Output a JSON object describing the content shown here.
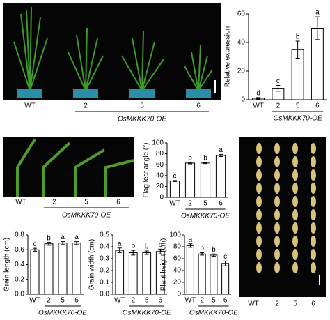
{
  "photos": [
    {
      "labels": [
        "WT",
        "2",
        "5",
        "6"
      ],
      "group_label": "OsMKKK70-OE"
    },
    {
      "labels": [
        "WT",
        "2",
        "5",
        "6"
      ],
      "group_label": "OsMKKK70-OE"
    },
    {
      "labels": [
        "WT",
        "2",
        "5",
        "6"
      ]
    }
  ],
  "chart_data": [
    {
      "type": "bar",
      "y_label": "Relative expression",
      "categories": [
        "WT",
        "2",
        "5",
        "6"
      ],
      "group_label": "OsMKKK70-OE",
      "values": [
        1,
        8,
        35,
        50
      ],
      "errors": [
        0.5,
        2,
        6,
        8
      ],
      "significance": [
        "d",
        "c",
        "b",
        "a"
      ],
      "ylim": [
        0,
        60
      ],
      "yticks": [
        0,
        20,
        40,
        60
      ],
      "color": "#ffffff"
    },
    {
      "type": "bar",
      "y_label": "Flag leaf angle (°)",
      "categories": [
        "WT",
        "2",
        "5",
        "6"
      ],
      "group_label": "OsMKKK70-OE",
      "values": [
        30,
        63,
        63,
        77
      ],
      "errors": [
        1,
        1.5,
        1,
        2
      ],
      "significance": [
        "c",
        "b",
        "b",
        "a"
      ],
      "ylim": [
        0,
        100
      ],
      "yticks": [
        0,
        20,
        40,
        60,
        80,
        100
      ],
      "color": "#ffffff"
    },
    {
      "type": "bar",
      "y_label": "Grain length (cm)",
      "categories": [
        "WT",
        "2",
        "5",
        "6"
      ],
      "group_label": "OsMKKK70-OE",
      "values": [
        0.6,
        0.68,
        0.69,
        0.69
      ],
      "errors": [
        0.02,
        0.02,
        0.02,
        0.02
      ],
      "significance": [
        "c",
        "b",
        "a",
        "a"
      ],
      "ylim": [
        0,
        0.8
      ],
      "yticks": [
        {
          "value": 0,
          "label": "0.0"
        },
        0.2,
        0.4,
        0.6,
        0.8
      ],
      "color": "#ffffff"
    },
    {
      "type": "bar",
      "y_label": "Grain width (cm)",
      "categories": [
        "WT",
        "2",
        "5",
        "6"
      ],
      "group_label": "OsMKKK70-OE",
      "values": [
        0.37,
        0.35,
        0.35,
        0.36
      ],
      "errors": [
        0.02,
        0.02,
        0.015,
        0.02
      ],
      "significance": [
        "a",
        "b",
        "b",
        "b"
      ],
      "ylim": [
        0,
        0.5
      ],
      "yticks": [
        {
          "value": 0,
          "label": "0.0"
        },
        0.1,
        0.2,
        0.3,
        0.4,
        0.5
      ],
      "color": "#ffffff"
    },
    {
      "type": "bar",
      "y_label": "Plant height (cm)",
      "categories": [
        "WT",
        "2",
        "5",
        "6"
      ],
      "group_label": "OsMKKK70-OE",
      "values": [
        82,
        68,
        66,
        52
      ],
      "errors": [
        3,
        2,
        2,
        4
      ],
      "significance": [
        "a",
        "b",
        "b",
        "c"
      ],
      "ylim": [
        0,
        100
      ],
      "yticks": [
        0,
        20,
        40,
        60,
        80,
        100
      ],
      "color": "#ffffff"
    }
  ]
}
